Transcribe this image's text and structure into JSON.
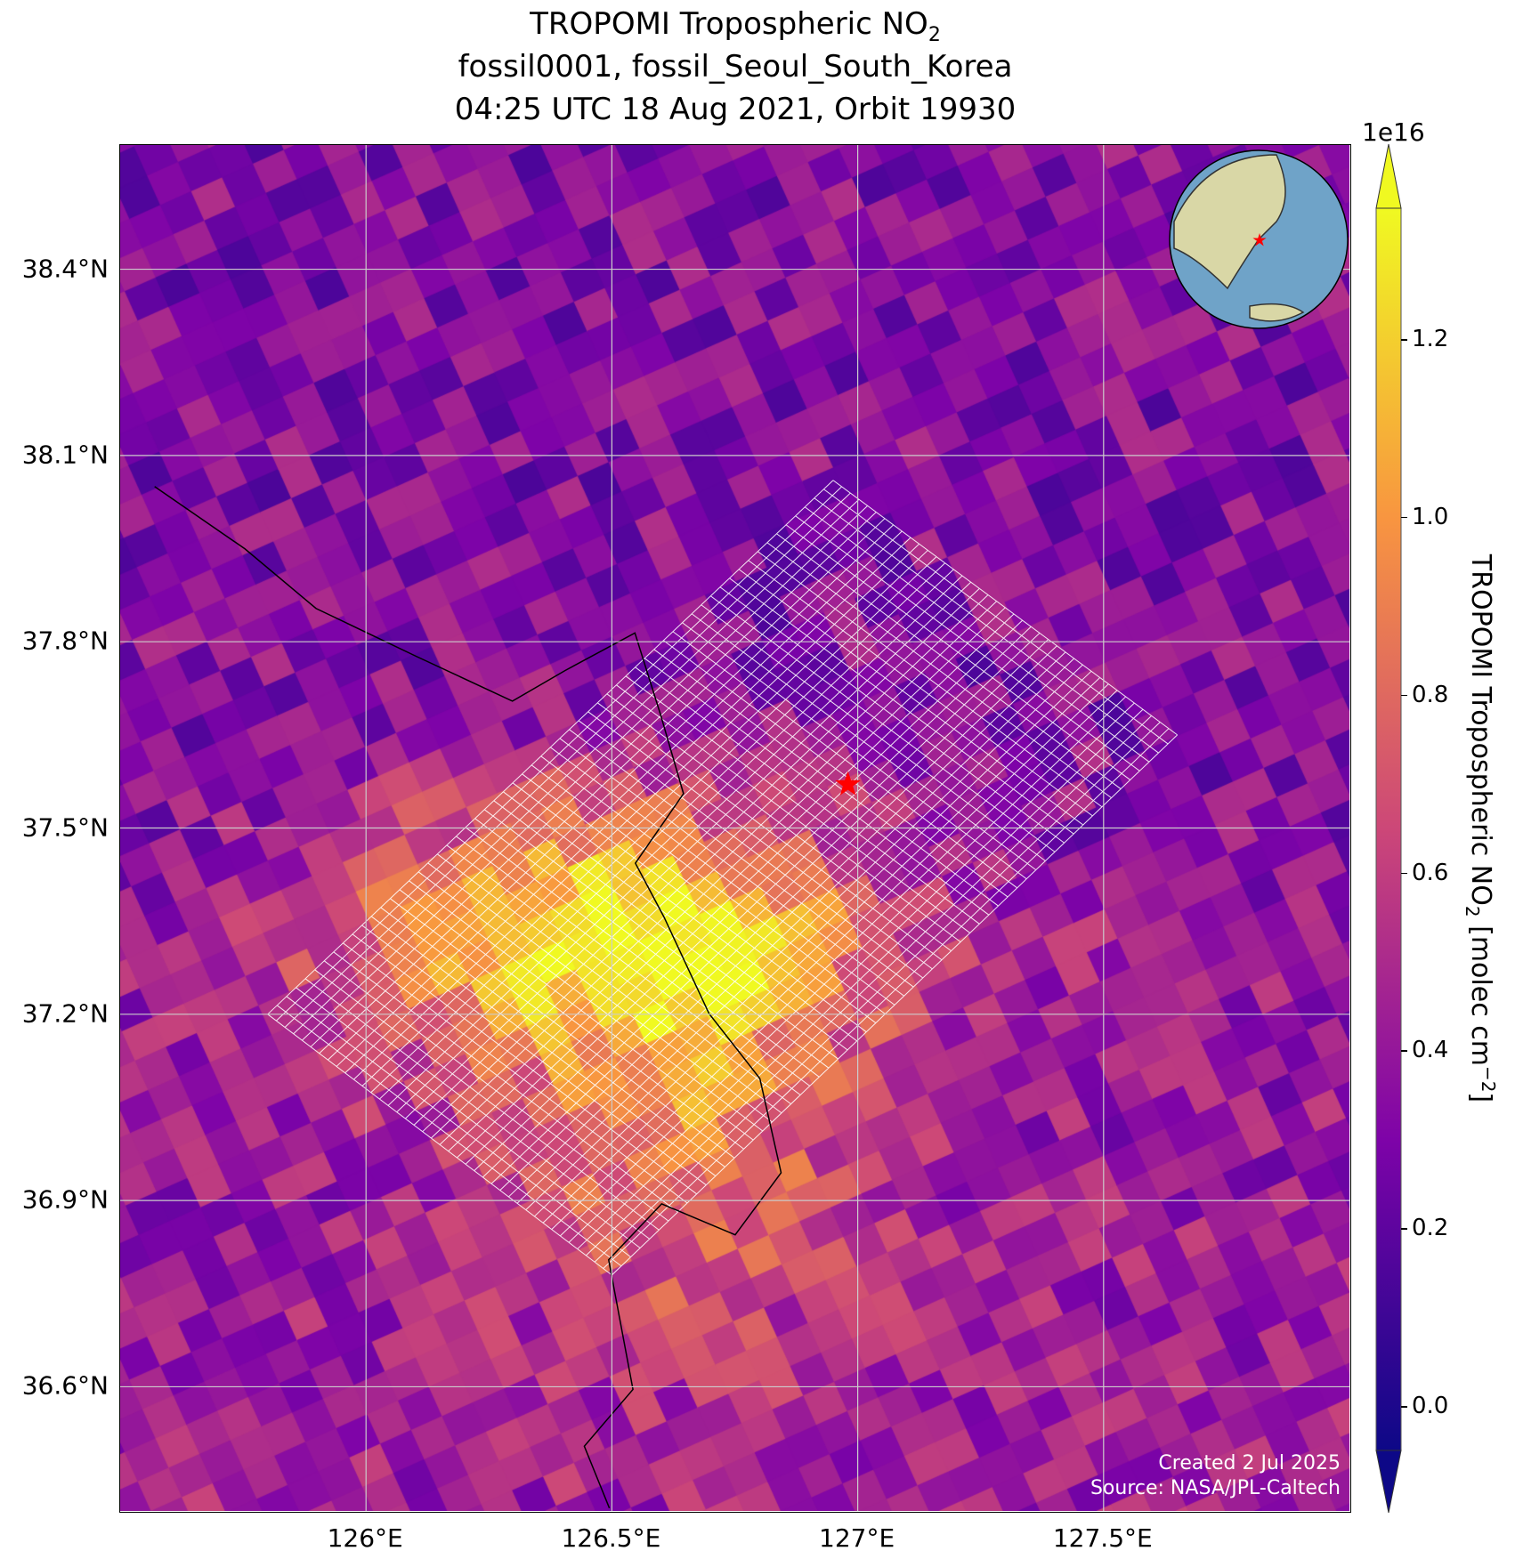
{
  "title": {
    "line1_main": "TROPOMI Tropospheric NO",
    "line1_sub": "2",
    "line2": "fossil0001, fossil_Seoul_South_Korea",
    "line3": "04:25 UTC 18 Aug 2021, Orbit 19930"
  },
  "chart_data": {
    "type": "heatmap",
    "projection": "map",
    "extent": {
      "lon": [
        125.5,
        128.0
      ],
      "lat": [
        36.4,
        38.6
      ]
    },
    "x_ticks": [
      "126°E",
      "126.5°E",
      "127°E",
      "127.5°E"
    ],
    "x_tick_values": [
      126.0,
      126.5,
      127.0,
      127.5
    ],
    "y_ticks": [
      "38.4°N",
      "38.1°N",
      "37.8°N",
      "37.5°N",
      "37.2°N",
      "36.9°N",
      "36.6°N"
    ],
    "y_tick_values": [
      38.4,
      38.1,
      37.8,
      37.5,
      37.2,
      36.9,
      36.6
    ],
    "grid": true,
    "colormap": "plasma",
    "colorbar": {
      "label_main": "TROPOMI Tropospheric NO",
      "label_sub": "2",
      "label_units": " [molec cm",
      "label_exp": "−2",
      "label_end": "]",
      "exponent": "1e16",
      "ticks": [
        "0.0",
        "0.2",
        "0.4",
        "0.6",
        "0.8",
        "1.0",
        "1.2"
      ],
      "tick_values": [
        0.0,
        0.2,
        0.4,
        0.6,
        0.8,
        1.0,
        1.2
      ],
      "range": [
        -0.1,
        1.35
      ],
      "extend": "both"
    },
    "site_marker": {
      "symbol": "star",
      "color": "#ff0000",
      "lon": 126.98,
      "lat": 37.57
    },
    "background_value_range": [
      0.1,
      0.5
    ],
    "hotspot_peak": 1.3
  },
  "credits": {
    "created": "Created 2 Jul 2025",
    "source": "Source: NASA/JPL-Caltech"
  },
  "inset": {
    "type": "globe",
    "marker_color": "#ff0000"
  }
}
